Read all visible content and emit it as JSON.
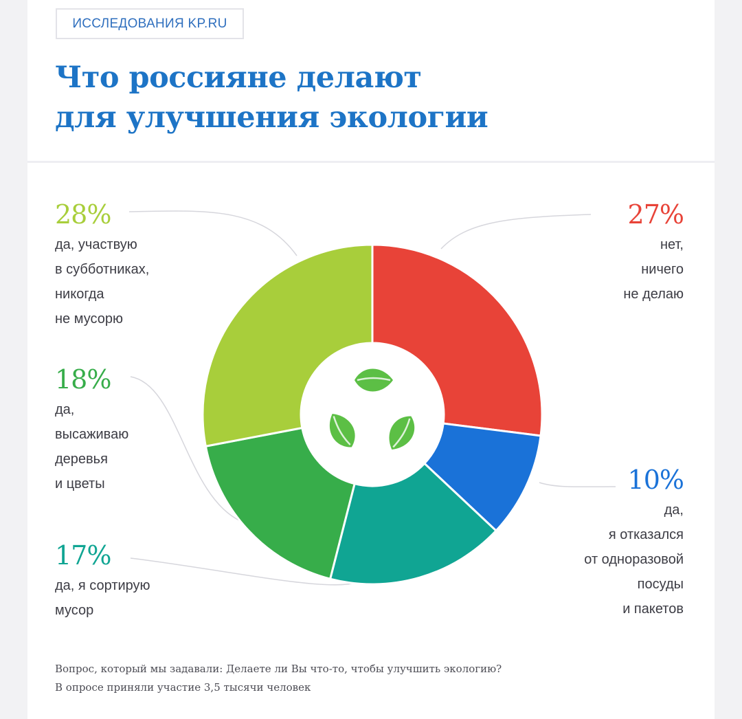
{
  "badge": "ИССЛЕДОВАНИЯ KP.RU",
  "title_lines": [
    "Что россияне делают",
    "для улучшения экологии"
  ],
  "colors": {
    "title": "#1d74c6",
    "none": "#e84338",
    "refuse_plastic": "#1a72d8",
    "sort": "#10a593",
    "plant": "#37ad4a",
    "cleanup": "#a8ce3b",
    "leaf": "#5cbf45"
  },
  "center_icon": "recycle-leaves-icon",
  "chart_data": {
    "type": "pie",
    "donut": true,
    "title": "Что россияне делают для улучшения экологии",
    "slices": [
      {
        "key": "none",
        "value": 27,
        "label": "27%",
        "text": "нет,\nничего\nне делаю",
        "color": "#e84338"
      },
      {
        "key": "refuse_plastic",
        "value": 10,
        "label": "10%",
        "text": "да,\nя отказался\nот одноразовой\nпосуды\nи пакетов",
        "color": "#1a72d8"
      },
      {
        "key": "sort",
        "value": 17,
        "label": "17%",
        "text": "да, я сортирую\nмусор",
        "color": "#10a593"
      },
      {
        "key": "plant",
        "value": 18,
        "label": "18%",
        "text": "да,\nвысаживаю\nдеревья\nи цветы",
        "color": "#37ad4a"
      },
      {
        "key": "cleanup",
        "value": 28,
        "label": "28%",
        "text": "да, участвую\nв субботниках,\nникогда\nне мусорю",
        "color": "#a8ce3b"
      }
    ]
  },
  "footnote": [
    "Вопрос, который мы задавали: Делаете ли Вы что-то, чтобы улучшить экологию?",
    "В опросе приняли участие 3,5 тысячи человек"
  ]
}
